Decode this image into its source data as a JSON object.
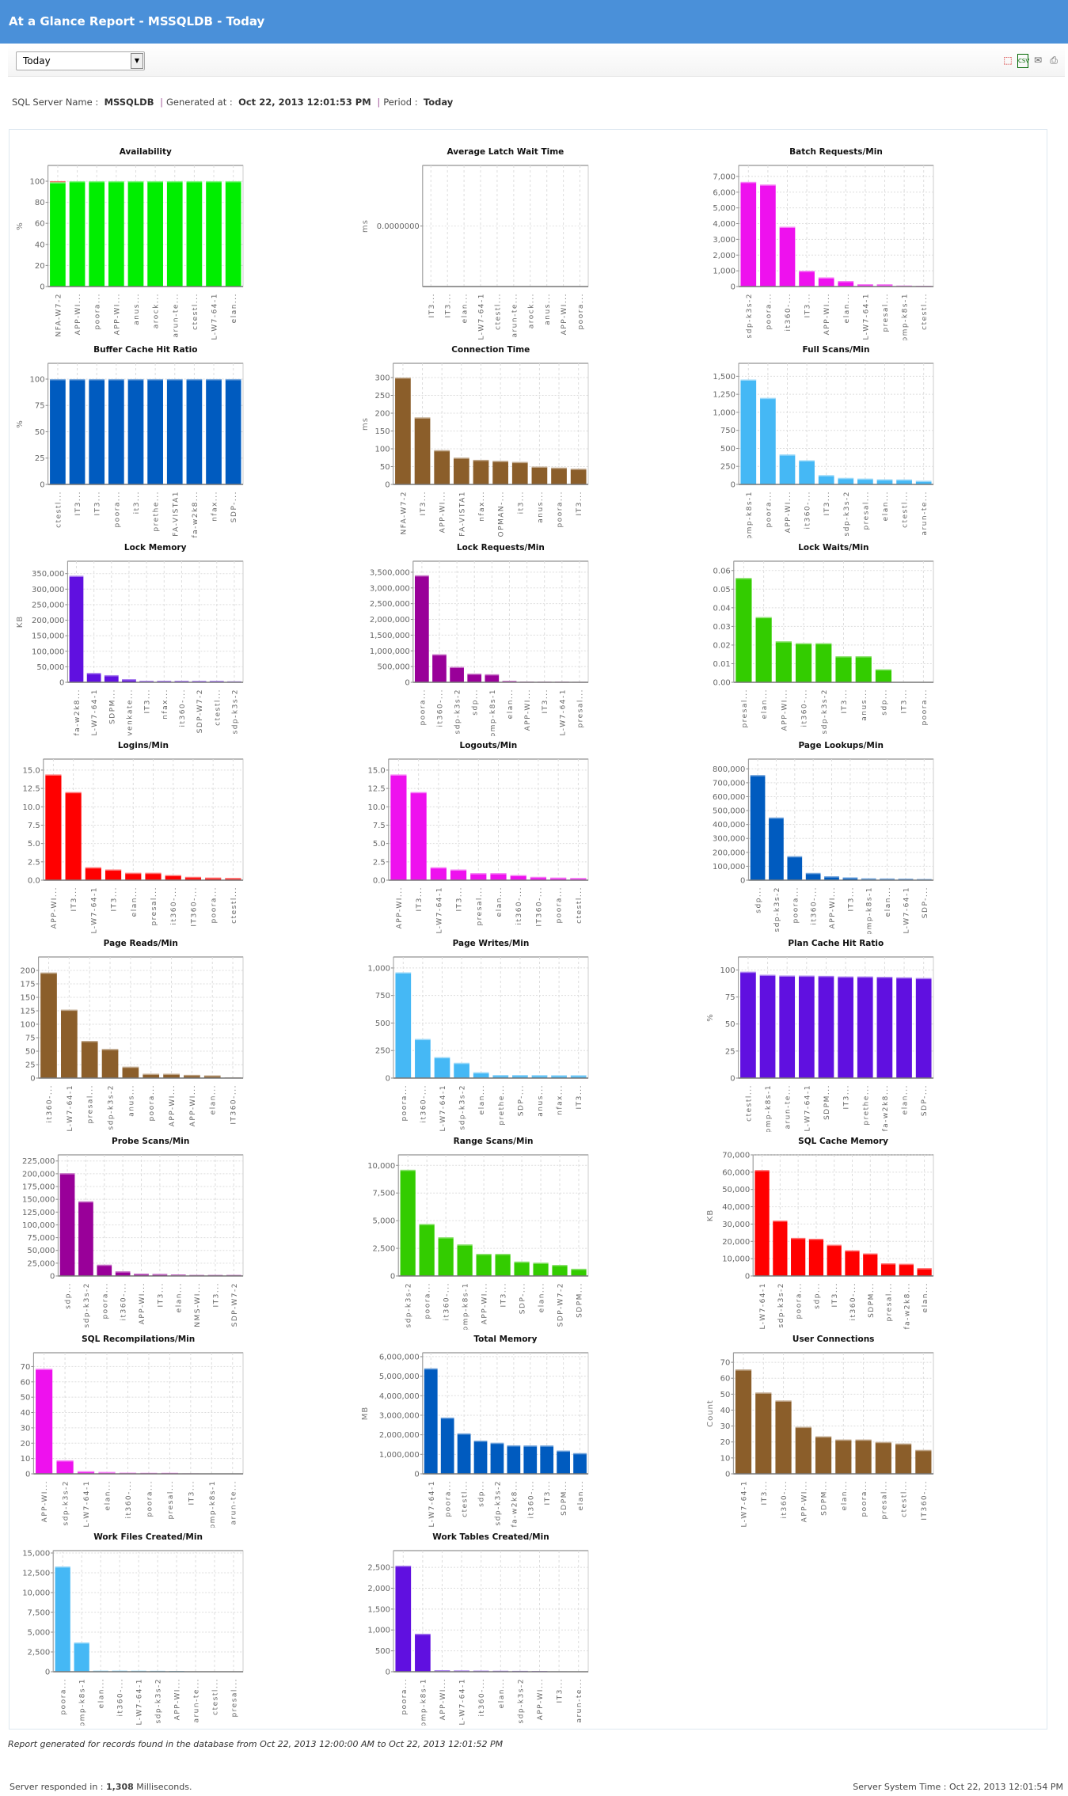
{
  "header": {
    "title": "At a Glance Report - MSSQLDB - Today"
  },
  "toolbar": {
    "period_select": "Today",
    "icons": [
      "pdf-icon",
      "csv-icon",
      "email-icon",
      "print-icon"
    ]
  },
  "info": {
    "server_label": "SQL Server Name",
    "server": "MSSQLDB",
    "generated_label": "Generated at",
    "generated": "Oct 22, 2013 12:01:53 PM",
    "period_label": "Period",
    "period": "Today"
  },
  "footer": {
    "records": "Report generated for records found in the database from Oct 22, 2013 12:00:00 AM to Oct 22, 2013 12:01:52 PM",
    "responded_label": "Server responded in :",
    "responded_value": "1,308",
    "responded_unit": "Milliseconds.",
    "system_time": "Server System Time : Oct 22, 2013 12:01:54 PM"
  },
  "chart_data": [
    {
      "type": "bar",
      "title": "Availability",
      "ylabel": "%",
      "ylim": [
        0,
        115
      ],
      "ticks": [
        0,
        20,
        40,
        60,
        80,
        100
      ],
      "tick_labels": [
        "0",
        "20",
        "40",
        "60",
        "80",
        "100"
      ],
      "color": "#00ee00",
      "down_color": "#ee6655",
      "categories": [
        "NFA-W7-2",
        "APP-WI...",
        "poora...",
        "APP-WI...",
        "anus...",
        "arock...",
        "arun-te...",
        "ctestl...",
        "EL-W7-64-1",
        "elan..."
      ],
      "values": [
        99,
        100,
        100,
        100,
        100,
        100,
        100,
        100,
        100,
        100
      ],
      "down": [
        1,
        0,
        0,
        0,
        0,
        0,
        0,
        0,
        0,
        0
      ]
    },
    {
      "type": "bar",
      "title": "Average Latch Wait Time",
      "ylabel": "ms",
      "ylim": [
        -1,
        1
      ],
      "ticks": [
        0
      ],
      "tick_labels": [
        "0.0000000"
      ],
      "color": "#ee11ee",
      "categories": [
        "IT3...",
        "IT3...",
        "elan...",
        "EL-W7-64-1",
        "ctestl...",
        "arun-te...",
        "arock...",
        "anus...",
        "APP-WI...",
        "poora..."
      ],
      "values": [
        0,
        0,
        0,
        0,
        0,
        0,
        0,
        0,
        0,
        0
      ]
    },
    {
      "type": "bar",
      "title": "Batch Requests/Min",
      "ylabel": "",
      "ylim": [
        0,
        7700
      ],
      "ticks": [
        0,
        1000,
        2000,
        3000,
        4000,
        5000,
        6000,
        7000
      ],
      "tick_labels": [
        "0",
        "1,000",
        "2,000",
        "3,000",
        "4,000",
        "5,000",
        "6,000",
        "7,000"
      ],
      "color": "#ee11ee",
      "categories": [
        "sdp-k3s-2",
        "poora...",
        "it360-...",
        "IT3...",
        "APP-WI...",
        "elan...",
        "EL-W7-64-1",
        "presal...",
        "pmp-k8s-1",
        "ctestl..."
      ],
      "values": [
        6650,
        6480,
        3800,
        1000,
        580,
        350,
        150,
        140,
        60,
        50
      ]
    },
    {
      "type": "bar",
      "title": "Buffer Cache Hit Ratio",
      "ylabel": "%",
      "ylim": [
        0,
        115
      ],
      "ticks": [
        0,
        25,
        50,
        75,
        100
      ],
      "tick_labels": [
        "0",
        "25",
        "50",
        "75",
        "100"
      ],
      "color": "#005bbf",
      "categories": [
        "ctestl...",
        "IT3...",
        "IT3...",
        "poora...",
        "it3...",
        "prethe...",
        "NFA-VISTA1",
        "nfa-w2k8...",
        "nfax...",
        "SDP-..."
      ],
      "values": [
        100,
        100,
        100,
        100,
        100,
        100,
        100,
        100,
        100,
        100
      ]
    },
    {
      "type": "bar",
      "title": "Connection Time",
      "ylabel": "ms",
      "ylim": [
        0,
        340
      ],
      "ticks": [
        0,
        50,
        100,
        150,
        200,
        250,
        300
      ],
      "tick_labels": [
        "0",
        "50",
        "100",
        "150",
        "200",
        "250",
        "300"
      ],
      "color": "#8b5e2a",
      "categories": [
        "NFA-W7-2",
        "IT3...",
        "APP-WI...",
        "NFA-VISTA1",
        "nfax...",
        "OPMAN-...",
        "it3...",
        "anus...",
        "poora...",
        "IT3..."
      ],
      "values": [
        300,
        188,
        96,
        75,
        69,
        66,
        63,
        50,
        47,
        44
      ]
    },
    {
      "type": "bar",
      "title": "Full Scans/Min",
      "ylabel": "",
      "ylim": [
        0,
        1680
      ],
      "ticks": [
        0,
        250,
        500,
        750,
        1000,
        1250,
        1500
      ],
      "tick_labels": [
        "0",
        "250",
        "500",
        "750",
        "1,000",
        "1,250",
        "1,500"
      ],
      "color": "#45b8f5",
      "categories": [
        "pmp-k8s-1",
        "poora...",
        "APP-WI...",
        "it360-...",
        "IT3...",
        "sdp-k3s-2",
        "presal...",
        "elan...",
        "ctestl...",
        "arun-te..."
      ],
      "values": [
        1455,
        1200,
        415,
        335,
        128,
        90,
        80,
        70,
        68,
        50
      ]
    },
    {
      "type": "bar",
      "title": "Lock Memory",
      "ylabel": "KB",
      "ylim": [
        0,
        390000
      ],
      "ticks": [
        0,
        50000,
        100000,
        150000,
        200000,
        250000,
        300000,
        350000
      ],
      "tick_labels": [
        "0",
        "50,000",
        "100,000",
        "150,000",
        "200,000",
        "250,000",
        "300,000",
        "350,000"
      ],
      "color": "#6010e0",
      "categories": [
        "nfa-w2k8...",
        "EL-W7-64-1",
        "SDPM...",
        "venkate...",
        "IT3...",
        "nfax...",
        "it360-...",
        "SDP-W7-2",
        "ctestl...",
        "sdp-k3s-2"
      ],
      "values": [
        343000,
        30000,
        23000,
        10000,
        5000,
        5000,
        5000,
        4500,
        4500,
        3000
      ]
    },
    {
      "type": "bar",
      "title": "Lock Requests/Min",
      "ylabel": "",
      "ylim": [
        0,
        3850000
      ],
      "ticks": [
        0,
        500000,
        1000000,
        1500000,
        2000000,
        2500000,
        3000000,
        3500000
      ],
      "tick_labels": [
        "0",
        "500,000",
        "1,000,000",
        "1,500,000",
        "2,000,000",
        "2,500,000",
        "3,000,000",
        "3,500,000"
      ],
      "color": "#990099",
      "categories": [
        "poora...",
        "it360-...",
        "sdp-k3s-2",
        "sdp...",
        "pmp-k8s-1",
        "elan...",
        "APP-WI...",
        "IT3...",
        "EL-W7-64-1",
        "presal..."
      ],
      "values": [
        3400000,
        890000,
        490000,
        275000,
        255000,
        50000,
        25000,
        20000,
        20000,
        15000
      ]
    },
    {
      "type": "bar",
      "title": "Lock Waits/Min",
      "ylabel": "",
      "ylim": [
        0,
        0.065
      ],
      "ticks": [
        0,
        0.01,
        0.02,
        0.03,
        0.04,
        0.05,
        0.06
      ],
      "tick_labels": [
        "0.00",
        "0.01",
        "0.02",
        "0.03",
        "0.04",
        "0.05",
        "0.06"
      ],
      "color": "#33cc00",
      "categories": [
        "presal...",
        "elan...",
        "APP-WI...",
        "it360-...",
        "sdp-k3s-2",
        "IT3...",
        "anus...",
        "sdp...",
        "IT3...",
        "poora..."
      ],
      "values": [
        0.056,
        0.035,
        0.022,
        0.021,
        0.021,
        0.014,
        0.014,
        0.007,
        0,
        0
      ]
    },
    {
      "type": "bar",
      "title": "Logins/Min",
      "ylabel": "",
      "ylim": [
        0,
        16.5
      ],
      "ticks": [
        0,
        2.5,
        5,
        7.5,
        10,
        12.5,
        15
      ],
      "tick_labels": [
        "0.0",
        "2.5",
        "5.0",
        "7.5",
        "10.0",
        "12.5",
        "15.0"
      ],
      "color": "#ff0000",
      "categories": [
        "APP-WI...",
        "IT3...",
        "EL-W7-64-1",
        "IT3...",
        "elan...",
        "presal...",
        "it360-...",
        "IT360-...",
        "poora...",
        "ctestl..."
      ],
      "values": [
        14.4,
        12,
        1.75,
        1.45,
        1,
        1,
        0.7,
        0.45,
        0.35,
        0.3
      ]
    },
    {
      "type": "bar",
      "title": "Logouts/Min",
      "ylabel": "",
      "ylim": [
        0,
        16.5
      ],
      "ticks": [
        0,
        2.5,
        5,
        7.5,
        10,
        12.5,
        15
      ],
      "tick_labels": [
        "0.0",
        "2.5",
        "5.0",
        "7.5",
        "10.0",
        "12.5",
        "15.0"
      ],
      "color": "#ee11ee",
      "categories": [
        "APP-WI...",
        "IT3...",
        "EL-W7-64-1",
        "IT3...",
        "presal...",
        "elan...",
        "it360-...",
        "IT360-...",
        "poora...",
        "ctestl..."
      ],
      "values": [
        14.4,
        12,
        1.75,
        1.45,
        0.95,
        0.95,
        0.7,
        0.45,
        0.35,
        0.3
      ]
    },
    {
      "type": "bar",
      "title": "Page Lookups/Min",
      "ylabel": "",
      "ylim": [
        0,
        870000
      ],
      "ticks": [
        0,
        100000,
        200000,
        300000,
        400000,
        500000,
        600000,
        700000,
        800000
      ],
      "tick_labels": [
        "0",
        "100,000",
        "200,000",
        "300,000",
        "400,000",
        "500,000",
        "600,000",
        "700,000",
        "800,000"
      ],
      "color": "#005bbf",
      "categories": [
        "sdp...",
        "sdp-k3s-2",
        "poora...",
        "it360-...",
        "APP-WI...",
        "IT3...",
        "pmp-k8s-1",
        "elan...",
        "EL-W7-64-1",
        "SDP-..."
      ],
      "values": [
        755000,
        450000,
        172000,
        52000,
        28000,
        20000,
        13000,
        12000,
        11000,
        8000
      ]
    },
    {
      "type": "bar",
      "title": "Page Reads/Min",
      "ylabel": "",
      "ylim": [
        0,
        225
      ],
      "ticks": [
        0,
        25,
        50,
        75,
        100,
        125,
        150,
        175,
        200
      ],
      "tick_labels": [
        "0",
        "25",
        "50",
        "75",
        "100",
        "125",
        "150",
        "175",
        "200"
      ],
      "color": "#8b5e2a",
      "categories": [
        "it360-...",
        "EL-W7-64-1",
        "presal...",
        "sdp-k3s-2",
        "anus...",
        "poora...",
        "APP-WI...",
        "APP-WI...",
        "elan...",
        "IT360-..."
      ],
      "values": [
        196,
        127,
        69,
        54,
        21,
        8,
        8,
        6,
        5,
        1
      ]
    },
    {
      "type": "bar",
      "title": "Page Writes/Min",
      "ylabel": "",
      "ylim": [
        0,
        1100
      ],
      "ticks": [
        0,
        250,
        500,
        750,
        1000
      ],
      "tick_labels": [
        "0",
        "250",
        "500",
        "750",
        "1,000"
      ],
      "color": "#45b8f5",
      "categories": [
        "poora...",
        "it360-...",
        "EL-W7-64-1",
        "sdp-k3s-2",
        "elan...",
        "prethe...",
        "SDP-...",
        "anus...",
        "nfax...",
        "IT3..."
      ],
      "values": [
        960,
        355,
        190,
        138,
        52,
        28,
        28,
        27,
        26,
        26
      ]
    },
    {
      "type": "bar",
      "title": "Plan Cache Hit Ratio",
      "ylabel": "%",
      "ylim": [
        0,
        112
      ],
      "ticks": [
        0,
        25,
        50,
        75,
        100
      ],
      "tick_labels": [
        "0",
        "25",
        "50",
        "75",
        "100"
      ],
      "color": "#6010e0",
      "categories": [
        "ctestl...",
        "pmp-k8s-1",
        "arun-te...",
        "EL-W7-64-1",
        "SDPM...",
        "IT3...",
        "prethe...",
        "nfa-w2k8...",
        "elan...",
        "SDP-..."
      ],
      "values": [
        98.3,
        95.5,
        94.8,
        94.7,
        94.5,
        93.9,
        93.9,
        93.6,
        93.1,
        92.5
      ]
    },
    {
      "type": "bar",
      "title": "Probe Scans/Min",
      "ylabel": "",
      "ylim": [
        0,
        237000
      ],
      "ticks": [
        0,
        25000,
        50000,
        75000,
        100000,
        125000,
        150000,
        175000,
        200000,
        225000
      ],
      "tick_labels": [
        "0",
        "25,000",
        "50,000",
        "75,000",
        "100,000",
        "125,000",
        "150,000",
        "175,000",
        "200,000",
        "225,000"
      ],
      "color": "#990099",
      "categories": [
        "sdp...",
        "sdp-k3s-2",
        "poora...",
        "it360-...",
        "APP-WI...",
        "IT3...",
        "elan...",
        "NMS-WI...",
        "IT3...",
        "SDP-W7-2"
      ],
      "values": [
        201000,
        146000,
        22000,
        9000,
        4500,
        4000,
        3000,
        2000,
        2000,
        2000
      ]
    },
    {
      "type": "bar",
      "title": "Range Scans/Min",
      "ylabel": "",
      "ylim": [
        0,
        10950
      ],
      "ticks": [
        0,
        2500,
        5000,
        7500,
        10000
      ],
      "tick_labels": [
        "0",
        "2,500",
        "5,000",
        "7,500",
        "10,000"
      ],
      "color": "#33cc00",
      "categories": [
        "sdp-k3s-2",
        "poora...",
        "it360-...",
        "pmp-k8s-1",
        "APP-WI...",
        "IT3...",
        "SDP-...",
        "elan...",
        "SDP-W7-2",
        "SDPM..."
      ],
      "values": [
        9600,
        4700,
        3500,
        2850,
        2000,
        2000,
        1300,
        1200,
        1000,
        650
      ]
    },
    {
      "type": "bar",
      "title": "SQL Cache Memory",
      "ylabel": "KB",
      "ylim": [
        0,
        70000
      ],
      "ticks": [
        0,
        10000,
        20000,
        30000,
        40000,
        50000,
        60000,
        70000
      ],
      "tick_labels": [
        "0",
        "10,000",
        "20,000",
        "30,000",
        "40,000",
        "50,000",
        "60,000",
        "70,000"
      ],
      "color": "#ff0000",
      "categories": [
        "EL-W7-64-1",
        "sdp-k3s-2",
        "poora...",
        "sdp...",
        "IT3...",
        "it360-...",
        "SDPM...",
        "presal...",
        "nfa-w2k8...",
        "elan..."
      ],
      "values": [
        61200,
        32000,
        22000,
        21500,
        18000,
        14800,
        13000,
        7300,
        7000,
        4500
      ]
    },
    {
      "type": "bar",
      "title": "SQL Recompilations/Min",
      "ylabel": "",
      "ylim": [
        0,
        79
      ],
      "ticks": [
        0,
        10,
        20,
        30,
        40,
        50,
        60,
        70
      ],
      "tick_labels": [
        "0",
        "10",
        "20",
        "30",
        "40",
        "50",
        "60",
        "70"
      ],
      "color": "#ee11ee",
      "categories": [
        "APP-WI...",
        "sdp-k3s-2",
        "EL-W7-64-1",
        "elan...",
        "it360-...",
        "poora...",
        "presal...",
        "IT3...",
        "pmp-k8s-1",
        "arun-te..."
      ],
      "values": [
        68.5,
        8.8,
        1.7,
        1.2,
        0.7,
        0.6,
        0.6,
        0.3,
        0.1,
        0.1
      ]
    },
    {
      "type": "bar",
      "title": "Total Memory",
      "ylabel": "MB",
      "ylim": [
        0,
        6200000
      ],
      "ticks": [
        0,
        1000000,
        2000000,
        3000000,
        4000000,
        5000000,
        6000000
      ],
      "tick_labels": [
        "0",
        "1,000,000",
        "2,000,000",
        "3,000,000",
        "4,000,000",
        "5,000,000",
        "6,000,000"
      ],
      "color": "#005bbf",
      "categories": [
        "EL-W7-64-1",
        "poora...",
        "ctestl...",
        "sdp...",
        "sdp-k3s-2",
        "nfa-w2k8...",
        "it360-...",
        "IT3...",
        "SDPM...",
        "elan..."
      ],
      "values": [
        5400000,
        2880000,
        2070000,
        1700000,
        1590000,
        1460000,
        1450000,
        1450000,
        1190000,
        1060000
      ]
    },
    {
      "type": "bar",
      "title": "User Connections",
      "ylabel": "Count",
      "ylim": [
        0,
        76
      ],
      "ticks": [
        0,
        10,
        20,
        30,
        40,
        50,
        60,
        70
      ],
      "tick_labels": [
        "0",
        "10",
        "20",
        "30",
        "40",
        "50",
        "60",
        "70"
      ],
      "color": "#8b5e2a",
      "categories": [
        "EL-W7-64-1",
        "IT3...",
        "it360-...",
        "APP-WI...",
        "SDPM...",
        "elan...",
        "poora...",
        "presal...",
        "ctestl...",
        "IT360-..."
      ],
      "values": [
        65.5,
        51,
        46,
        29.5,
        23.5,
        21.5,
        21.5,
        20,
        19,
        15
      ]
    },
    {
      "type": "bar",
      "title": "Work Files Created/Min",
      "ylabel": "",
      "ylim": [
        0,
        15300
      ],
      "ticks": [
        0,
        2500,
        5000,
        7500,
        10000,
        12500,
        15000
      ],
      "tick_labels": [
        "0",
        "2,500",
        "5,000",
        "7,500",
        "10,000",
        "12,500",
        "15,000"
      ],
      "color": "#45b8f5",
      "categories": [
        "poora...",
        "pmp-k8s-1",
        "elan...",
        "it360-...",
        "EL-W7-64-1",
        "sdp-k3s-2",
        "APP-WI...",
        "arun-te...",
        "ctestl...",
        "presal..."
      ],
      "values": [
        13300,
        3700,
        130,
        130,
        120,
        110,
        100,
        20,
        10,
        10
      ]
    },
    {
      "type": "bar",
      "title": "Work Tables Created/Min",
      "ylabel": "",
      "ylim": [
        0,
        2900
      ],
      "ticks": [
        0,
        500,
        1000,
        1500,
        2000,
        2500
      ],
      "tick_labels": [
        "0",
        "500",
        "1,000",
        "1,500",
        "2,000",
        "2,500"
      ],
      "color": "#6010e0",
      "categories": [
        "poora...",
        "pmp-k8s-1",
        "APP-WI...",
        "EL-W7-64-1",
        "it360-...",
        "elan...",
        "sdp-k3s-2",
        "APP-WI...",
        "IT3...",
        "arun-te..."
      ],
      "values": [
        2540,
        910,
        35,
        30,
        25,
        22,
        20,
        15,
        10,
        8
      ]
    }
  ]
}
